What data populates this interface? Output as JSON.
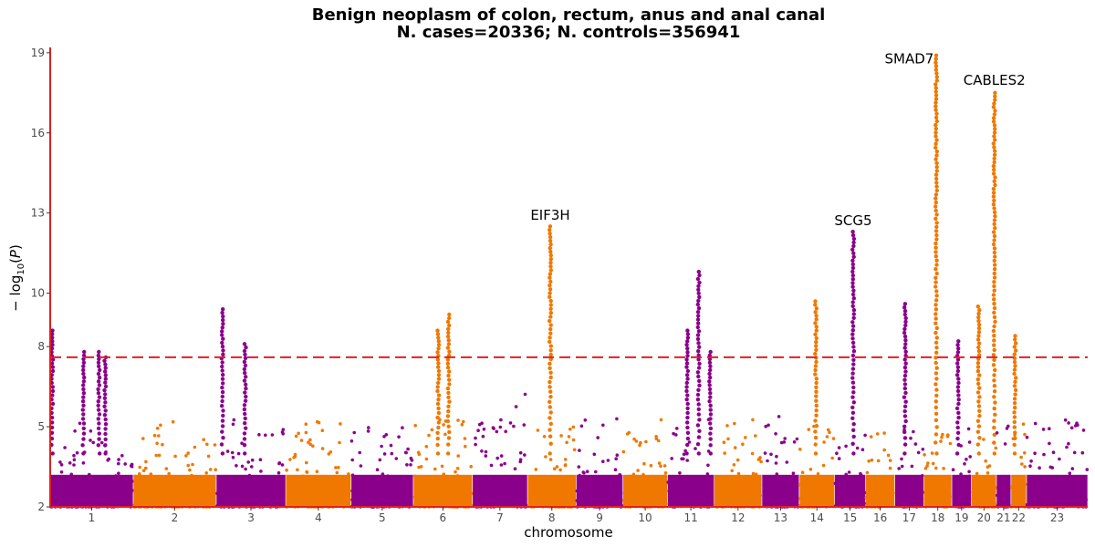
{
  "chart_data": {
    "type": "scatter",
    "subtype": "manhattan",
    "title": "Benign neoplasm of colon, rectum, anus and anal canal",
    "subtitle": "N. cases=20336; N. controls=356941",
    "xlabel": "chromosome",
    "ylabel": "−log10(P)",
    "ylim": [
      2,
      19.2
    ],
    "yticks": [
      "2",
      "5",
      "8",
      "10",
      "13",
      "16",
      "19"
    ],
    "significance_threshold": 7.6,
    "colors": {
      "odd": "#8b008b",
      "even": "#f07800",
      "threshold": "#e02020",
      "axis": "#e02020"
    },
    "chromosomes": [
      {
        "label": "1",
        "start": 0,
        "end": 8
      },
      {
        "label": "2",
        "start": 8,
        "end": 16
      },
      {
        "label": "3",
        "start": 16,
        "end": 22.7
      },
      {
        "label": "4",
        "start": 22.7,
        "end": 29
      },
      {
        "label": "5",
        "start": 29,
        "end": 35
      },
      {
        "label": "6",
        "start": 35,
        "end": 40.7
      },
      {
        "label": "7",
        "start": 40.7,
        "end": 46
      },
      {
        "label": "8",
        "start": 46,
        "end": 50.7
      },
      {
        "label": "9",
        "start": 50.7,
        "end": 55.2
      },
      {
        "label": "10",
        "start": 55.2,
        "end": 59.5
      },
      {
        "label": "11",
        "start": 59.5,
        "end": 64
      },
      {
        "label": "12",
        "start": 64,
        "end": 68.6
      },
      {
        "label": "13",
        "start": 68.6,
        "end": 72.2
      },
      {
        "label": "14",
        "start": 72.2,
        "end": 75.6
      },
      {
        "label": "15",
        "start": 75.6,
        "end": 78.6
      },
      {
        "label": "16",
        "start": 78.6,
        "end": 81.4
      },
      {
        "label": "17",
        "start": 81.4,
        "end": 84.2
      },
      {
        "label": "18",
        "start": 84.2,
        "end": 86.9
      },
      {
        "label": "19",
        "start": 86.9,
        "end": 88.8
      },
      {
        "label": "20",
        "start": 88.8,
        "end": 91.2
      },
      {
        "label": "21",
        "start": 91.2,
        "end": 92.6
      },
      {
        "label": "22",
        "start": 92.6,
        "end": 94.1
      },
      {
        "label": "23",
        "start": 94.1,
        "end": 100
      }
    ],
    "peaks": [
      {
        "x": 0.2,
        "top": 8.6
      },
      {
        "x": 3.2,
        "top": 7.8
      },
      {
        "x": 4.7,
        "top": 7.8
      },
      {
        "x": 5.3,
        "top": 7.6
      },
      {
        "x": 16.6,
        "top": 9.4
      },
      {
        "x": 18.8,
        "top": 8.1
      },
      {
        "x": 38.4,
        "top": 9.2
      },
      {
        "x": 37.4,
        "top": 8.6
      },
      {
        "x": 48.2,
        "top": 12.5
      },
      {
        "x": 61.4,
        "top": 8.6
      },
      {
        "x": 62.5,
        "top": 10.8
      },
      {
        "x": 63.6,
        "top": 7.8
      },
      {
        "x": 73.8,
        "top": 9.7
      },
      {
        "x": 77.4,
        "top": 12.3
      },
      {
        "x": 82.4,
        "top": 9.6
      },
      {
        "x": 85.4,
        "top": 18.9
      },
      {
        "x": 87.5,
        "top": 8.2
      },
      {
        "x": 89.5,
        "top": 9.5
      },
      {
        "x": 91.0,
        "top": 17.5
      },
      {
        "x": 93.0,
        "top": 8.4
      }
    ],
    "gene_labels": [
      {
        "gene": "EIF3H",
        "x": 48.2,
        "y": 12.75
      },
      {
        "gene": "SCG5",
        "x": 77.4,
        "y": 12.55
      },
      {
        "gene": "SMAD7",
        "x": 82.8,
        "y": 18.6
      },
      {
        "gene": "CABLES2",
        "x": 91.0,
        "y": 17.8
      }
    ]
  }
}
